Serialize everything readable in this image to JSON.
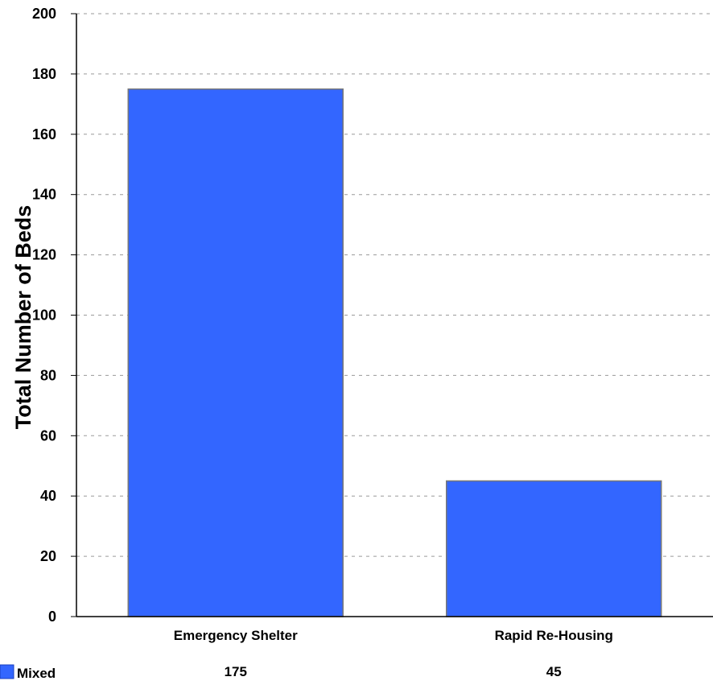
{
  "chart_data": {
    "type": "bar",
    "categories": [
      "Emergency Shelter",
      "Rapid Re-Housing"
    ],
    "series": [
      {
        "name": "Mixed",
        "values": [
          175,
          45
        ],
        "color": "#3366ff"
      }
    ],
    "title": "",
    "xlabel": "",
    "ylabel": "Total Number of Beds",
    "ylim": [
      0,
      200
    ],
    "yticks": [
      "0",
      "20",
      "40",
      "60",
      "80",
      "100",
      "120",
      "140",
      "160",
      "180",
      "200"
    ],
    "grid": true,
    "legend": "bottom-left",
    "data_table": {
      "row_label": "Mixed",
      "values": [
        "175",
        "45"
      ]
    }
  }
}
